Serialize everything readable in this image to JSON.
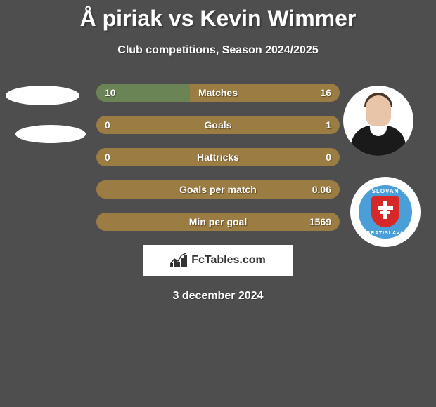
{
  "comparison": {
    "title": "Å piriak vs Kevin Wimmer",
    "subtitle": "Club competitions, Season 2024/2025",
    "date": "3 december 2024"
  },
  "stats": [
    {
      "label": "Matches",
      "left_value": "10",
      "right_value": "16",
      "fill_percent": 38.5,
      "bg_color": "#9b7c42",
      "fill_color": "#6a8455"
    },
    {
      "label": "Goals",
      "left_value": "0",
      "right_value": "1",
      "fill_percent": 0,
      "bg_color": "#9b7c42",
      "fill_color": "#6a8455"
    },
    {
      "label": "Hattricks",
      "left_value": "0",
      "right_value": "0",
      "fill_percent": 0,
      "bg_color": "#9b7c42",
      "fill_color": "#6a8455"
    },
    {
      "label": "Goals per match",
      "left_value": "",
      "right_value": "0.06",
      "fill_percent": 0,
      "bg_color": "#9b7c42",
      "fill_color": "#6a8455"
    },
    {
      "label": "Min per goal",
      "left_value": "",
      "right_value": "1569",
      "fill_percent": 0,
      "bg_color": "#9b7c42",
      "fill_color": "#6a8455"
    }
  ],
  "branding": {
    "logo_text": "FcTables.com"
  },
  "visual": {
    "background_color": "#4e4e4e",
    "text_color": "#ffffff",
    "club_logo_bg": "#4a9fd8",
    "club_shield_color": "#d62828",
    "club_text_top": "SLOVAN",
    "club_text_bottom": "BRATISLAVA"
  }
}
